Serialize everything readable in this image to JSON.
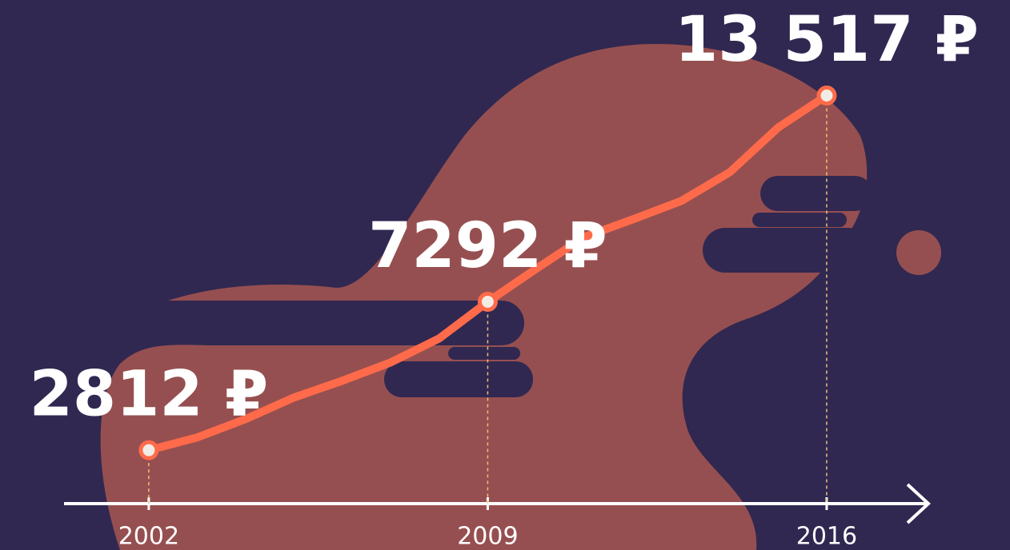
{
  "chart_data": {
    "type": "line",
    "x": [
      2002,
      2003,
      2004,
      2005,
      2006,
      2007,
      2008,
      2009,
      2010,
      2011,
      2012,
      2013,
      2014,
      2015,
      2016
    ],
    "values": [
      2812,
      3198,
      3752,
      4403,
      4910,
      5464,
      6188,
      7292,
      8286,
      9250,
      9781,
      10336,
      11204,
      12554,
      13517
    ],
    "value_labels": [
      "2812 ₽",
      null,
      null,
      null,
      null,
      null,
      null,
      "7292 ₽",
      null,
      null,
      null,
      null,
      null,
      null,
      "13 517 ₽"
    ],
    "color": "#ff6b4a",
    "xlim": [
      2000.25,
      2018.1
    ],
    "xticks": [
      2002,
      2009,
      2016
    ],
    "ylim": [
      1200,
      16400
    ],
    "grid": false
  }
}
